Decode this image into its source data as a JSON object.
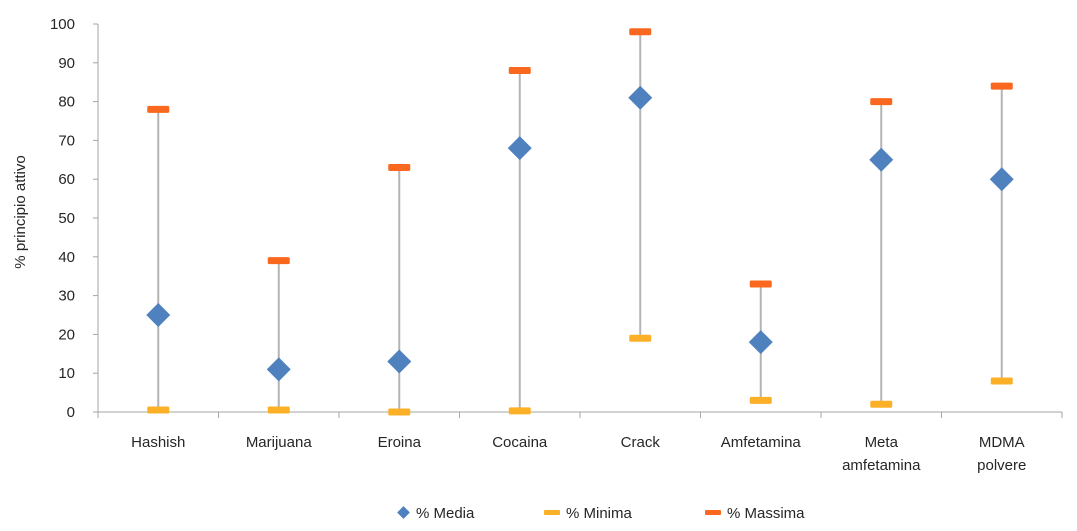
{
  "colors": {
    "media": "#4e81bd",
    "minima": "#fbb028",
    "massima": "#f9681e",
    "range_line": "#b4b4b4",
    "axis": "#a6a6a6",
    "text": "#262626"
  },
  "chart_data": {
    "type": "scatter",
    "title": "",
    "xlabel": "",
    "ylabel": "% principio attivo",
    "ylim": [
      0,
      100
    ],
    "yticks": [
      0,
      10,
      20,
      30,
      40,
      50,
      60,
      70,
      80,
      90,
      100
    ],
    "grid": false,
    "legend_position": "bottom",
    "categories": [
      [
        "Hashish"
      ],
      [
        "Marijuana"
      ],
      [
        "Eroina"
      ],
      [
        "Cocaina"
      ],
      [
        "Crack"
      ],
      [
        "Amfetamina"
      ],
      [
        "Meta",
        "amfetamina"
      ],
      [
        "MDMA",
        "polvere"
      ]
    ],
    "series": [
      {
        "name": "% Media",
        "marker": "diamond",
        "values": [
          25,
          11,
          13,
          68,
          81,
          18,
          65,
          60
        ]
      },
      {
        "name": "% Minima",
        "marker": "dash",
        "values": [
          0.5,
          0.5,
          0,
          0.3,
          19,
          3,
          2,
          8
        ]
      },
      {
        "name": "% Massima",
        "marker": "dash",
        "values": [
          78,
          39,
          63,
          88,
          98,
          33,
          80,
          84
        ]
      }
    ]
  }
}
